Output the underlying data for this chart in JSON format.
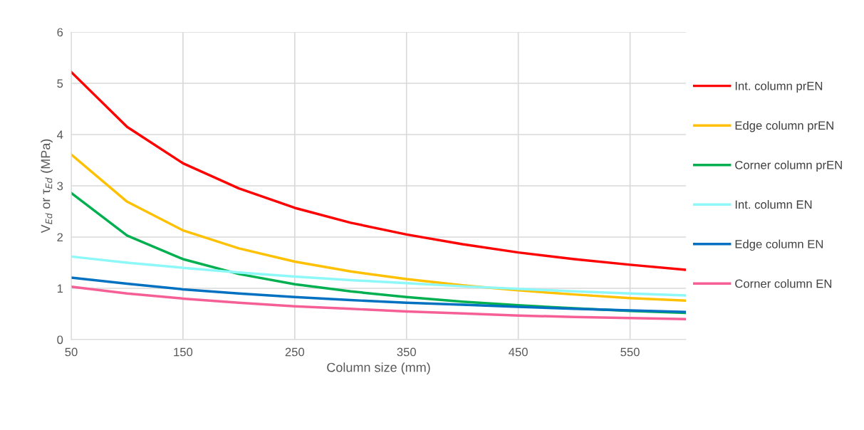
{
  "chart_data": {
    "type": "line",
    "xlabel": "Column size (mm)",
    "ylabel": "V$_{Ed}$ or τ$_{Ed}$ (MPa)",
    "x": [
      50,
      100,
      150,
      200,
      250,
      300,
      350,
      400,
      450,
      500,
      550,
      600
    ],
    "xlim": [
      50,
      600
    ],
    "xticks": [
      50,
      150,
      250,
      350,
      450,
      550
    ],
    "ylim": [
      0,
      6
    ],
    "yticks": [
      0,
      1,
      2,
      3,
      4,
      5,
      6
    ],
    "grid": true,
    "legend": "right",
    "marker": "none",
    "line_style": "solid",
    "series": [
      {
        "name": "Int. column prEN",
        "color": "#ff0000",
        "values": [
          5.22,
          4.15,
          3.44,
          2.95,
          2.57,
          2.28,
          2.05,
          1.86,
          1.7,
          1.57,
          1.46,
          1.36
        ]
      },
      {
        "name": "Edge column prEN",
        "color": "#ffc000",
        "values": [
          3.61,
          2.69,
          2.13,
          1.78,
          1.52,
          1.33,
          1.18,
          1.06,
          0.96,
          0.88,
          0.81,
          0.76
        ]
      },
      {
        "name": "Corner column prEN",
        "color": "#00b050",
        "values": [
          2.86,
          2.03,
          1.57,
          1.28,
          1.08,
          0.94,
          0.83,
          0.74,
          0.67,
          0.61,
          0.56,
          0.52
        ]
      },
      {
        "name": "Int. column EN",
        "color": "#8ef8f8",
        "values": [
          1.62,
          1.5,
          1.4,
          1.31,
          1.23,
          1.16,
          1.1,
          1.04,
          0.99,
          0.94,
          0.9,
          0.86
        ]
      },
      {
        "name": "Edge column EN",
        "color": "#0070c0",
        "values": [
          1.21,
          1.09,
          0.98,
          0.9,
          0.83,
          0.77,
          0.72,
          0.68,
          0.64,
          0.6,
          0.57,
          0.54
        ]
      },
      {
        "name": "Corner column EN",
        "color": "#f55f96",
        "values": [
          1.03,
          0.9,
          0.8,
          0.72,
          0.65,
          0.6,
          0.55,
          0.51,
          0.47,
          0.44,
          0.42,
          0.4
        ]
      }
    ]
  }
}
